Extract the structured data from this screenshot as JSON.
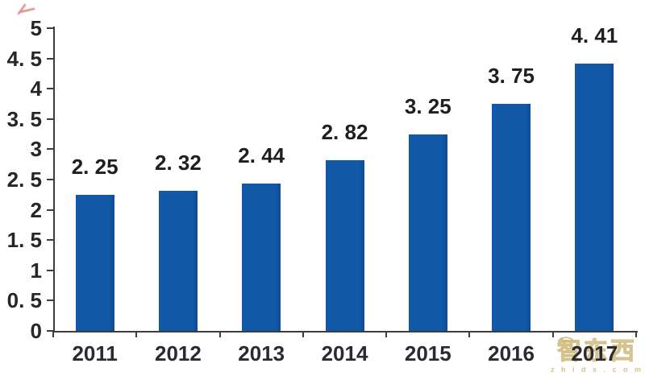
{
  "chart_data": {
    "type": "bar",
    "categories": [
      "2011",
      "2012",
      "2013",
      "2014",
      "2015",
      "2016",
      "2017"
    ],
    "values": [
      2.25,
      2.32,
      2.44,
      2.82,
      3.25,
      3.75,
      4.41
    ],
    "bar_labels": [
      "2. 25",
      "2. 32",
      "2. 44",
      "2. 82",
      "3. 25",
      "3. 75",
      "4. 41"
    ],
    "title": "",
    "xlabel": "",
    "ylabel": "",
    "ylim": [
      0,
      5
    ],
    "y_tick_step": 0.5,
    "y_tick_labels": [
      "0",
      "0. 5",
      "1",
      "1. 5",
      "2",
      "2. 5",
      "3",
      "3. 5",
      "4",
      "4. 5",
      "5"
    ],
    "grid": false,
    "legend": null,
    "bar_color": "#1158A7",
    "axis_color": "#3D3D3D",
    "label_color": "#1F1F23"
  },
  "watermark": {
    "cjk_text": "智东西",
    "domain_text": "z h i d x . c o m",
    "color": "#D8C694",
    "icon": "wifi-arc-icon"
  },
  "artifacts": {
    "top_left_red_mark": "red-stroke-fragment"
  }
}
